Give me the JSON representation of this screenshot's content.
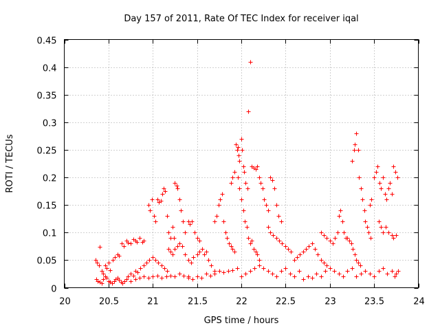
{
  "chart_data": {
    "type": "scatter",
    "title": "Day 157 of 2011, Rate Of TEC Index for receiver iqal",
    "xlabel": "GPS time / hours",
    "ylabel": "ROTI / TECUs",
    "xlim": [
      20,
      24
    ],
    "ylim": [
      0,
      0.45
    ],
    "xticks": [
      20,
      20.5,
      21,
      21.5,
      22,
      22.5,
      23,
      23.5,
      24
    ],
    "xtick_labels": [
      "20",
      "20.5",
      "21",
      "21.5",
      "22",
      "22.5",
      "23",
      "23.5",
      "24"
    ],
    "yticks": [
      0,
      0.05,
      0.1,
      0.15,
      0.2,
      0.25,
      0.3,
      0.35,
      0.4,
      0.45
    ],
    "ytick_labels": [
      "0",
      "0.05",
      "0.1",
      "0.15",
      "0.2",
      "0.25",
      "0.3",
      "0.35",
      "0.4",
      "0.45"
    ],
    "grid": true,
    "marker": "+",
    "color": "#ff0000",
    "series": [
      {
        "name": "ROTI",
        "points": [
          [
            20.35,
            0.05
          ],
          [
            20.37,
            0.045
          ],
          [
            20.39,
            0.04
          ],
          [
            20.4,
            0.074
          ],
          [
            20.42,
            0.03
          ],
          [
            20.44,
            0.025
          ],
          [
            20.36,
            0.015
          ],
          [
            20.38,
            0.012
          ],
          [
            20.4,
            0.01
          ],
          [
            20.42,
            0.008
          ],
          [
            20.44,
            0.015
          ],
          [
            20.46,
            0.02
          ],
          [
            20.48,
            0.018
          ],
          [
            20.5,
            0.012
          ],
          [
            20.52,
            0.01
          ],
          [
            20.54,
            0.008
          ],
          [
            20.56,
            0.012
          ],
          [
            20.58,
            0.015
          ],
          [
            20.6,
            0.018
          ],
          [
            20.62,
            0.014
          ],
          [
            20.64,
            0.01
          ],
          [
            20.66,
            0.008
          ],
          [
            20.68,
            0.012
          ],
          [
            20.7,
            0.016
          ],
          [
            20.46,
            0.04
          ],
          [
            20.48,
            0.035
          ],
          [
            20.5,
            0.045
          ],
          [
            20.52,
            0.032
          ],
          [
            20.55,
            0.05
          ],
          [
            20.57,
            0.055
          ],
          [
            20.6,
            0.06
          ],
          [
            20.62,
            0.058
          ],
          [
            20.65,
            0.08
          ],
          [
            20.67,
            0.075
          ],
          [
            20.7,
            0.085
          ],
          [
            20.72,
            0.082
          ],
          [
            20.75,
            0.08
          ],
          [
            20.78,
            0.088
          ],
          [
            20.8,
            0.085
          ],
          [
            20.82,
            0.083
          ],
          [
            20.85,
            0.09
          ],
          [
            20.88,
            0.083
          ],
          [
            20.9,
            0.086
          ],
          [
            20.72,
            0.02
          ],
          [
            20.75,
            0.025
          ],
          [
            20.78,
            0.022
          ],
          [
            20.8,
            0.03
          ],
          [
            20.83,
            0.028
          ],
          [
            20.86,
            0.035
          ],
          [
            20.9,
            0.04
          ],
          [
            20.93,
            0.045
          ],
          [
            20.96,
            0.05
          ],
          [
            21.0,
            0.055
          ],
          [
            21.03,
            0.05
          ],
          [
            21.06,
            0.045
          ],
          [
            21.1,
            0.04
          ],
          [
            21.13,
            0.035
          ],
          [
            21.16,
            0.03
          ],
          [
            20.75,
            0.012
          ],
          [
            20.8,
            0.015
          ],
          [
            20.85,
            0.018
          ],
          [
            20.9,
            0.02
          ],
          [
            20.95,
            0.018
          ],
          [
            21.0,
            0.02
          ],
          [
            21.05,
            0.022
          ],
          [
            21.1,
            0.018
          ],
          [
            21.15,
            0.02
          ],
          [
            21.2,
            0.022
          ],
          [
            21.25,
            0.02
          ],
          [
            21.3,
            0.025
          ],
          [
            21.35,
            0.022
          ],
          [
            21.4,
            0.02
          ],
          [
            20.95,
            0.15
          ],
          [
            20.97,
            0.14
          ],
          [
            20.99,
            0.16
          ],
          [
            21.01,
            0.13
          ],
          [
            21.03,
            0.12
          ],
          [
            21.05,
            0.16
          ],
          [
            21.07,
            0.155
          ],
          [
            21.09,
            0.158
          ],
          [
            21.11,
            0.17
          ],
          [
            21.12,
            0.18
          ],
          [
            21.14,
            0.175
          ],
          [
            21.16,
            0.13
          ],
          [
            21.18,
            0.1
          ],
          [
            21.2,
            0.09
          ],
          [
            21.22,
            0.11
          ],
          [
            21.24,
            0.09
          ],
          [
            21.25,
            0.19
          ],
          [
            21.27,
            0.185
          ],
          [
            21.28,
            0.18
          ],
          [
            21.3,
            0.16
          ],
          [
            21.32,
            0.14
          ],
          [
            21.34,
            0.12
          ],
          [
            21.36,
            0.1
          ],
          [
            21.18,
            0.07
          ],
          [
            21.2,
            0.065
          ],
          [
            21.22,
            0.06
          ],
          [
            21.25,
            0.07
          ],
          [
            21.28,
            0.075
          ],
          [
            21.3,
            0.08
          ],
          [
            21.33,
            0.075
          ],
          [
            21.36,
            0.06
          ],
          [
            21.4,
            0.05
          ],
          [
            21.43,
            0.045
          ],
          [
            21.46,
            0.055
          ],
          [
            21.5,
            0.06
          ],
          [
            21.53,
            0.065
          ],
          [
            21.4,
            0.12
          ],
          [
            21.42,
            0.115
          ],
          [
            21.44,
            0.12
          ],
          [
            21.47,
            0.1
          ],
          [
            21.5,
            0.09
          ],
          [
            21.53,
            0.085
          ],
          [
            21.56,
            0.07
          ],
          [
            21.58,
            0.06
          ],
          [
            21.6,
            0.065
          ],
          [
            21.63,
            0.05
          ],
          [
            21.66,
            0.04
          ],
          [
            21.7,
            0.03
          ],
          [
            21.4,
            0.018
          ],
          [
            21.45,
            0.015
          ],
          [
            21.5,
            0.02
          ],
          [
            21.55,
            0.018
          ],
          [
            21.6,
            0.025
          ],
          [
            21.65,
            0.022
          ],
          [
            21.7,
            0.025
          ],
          [
            21.75,
            0.03
          ],
          [
            21.8,
            0.028
          ],
          [
            21.85,
            0.03
          ],
          [
            21.9,
            0.032
          ],
          [
            21.95,
            0.035
          ],
          [
            21.7,
            0.12
          ],
          [
            21.72,
            0.13
          ],
          [
            21.74,
            0.15
          ],
          [
            21.76,
            0.16
          ],
          [
            21.78,
            0.17
          ],
          [
            21.8,
            0.12
          ],
          [
            21.82,
            0.1
          ],
          [
            21.84,
            0.09
          ],
          [
            21.86,
            0.08
          ],
          [
            21.88,
            0.075
          ],
          [
            21.9,
            0.07
          ],
          [
            21.92,
            0.065
          ],
          [
            21.88,
            0.19
          ],
          [
            21.9,
            0.2
          ],
          [
            21.92,
            0.21
          ],
          [
            21.94,
            0.26
          ],
          [
            21.95,
            0.25
          ],
          [
            21.96,
            0.255
          ],
          [
            21.97,
            0.24
          ],
          [
            21.98,
            0.23
          ],
          [
            22.0,
            0.27
          ],
          [
            22.01,
            0.25
          ],
          [
            22.02,
            0.22
          ],
          [
            22.03,
            0.21
          ],
          [
            22.05,
            0.19
          ],
          [
            22.07,
            0.18
          ],
          [
            22.08,
            0.32
          ],
          [
            22.1,
            0.41
          ],
          [
            21.96,
            0.2
          ],
          [
            21.98,
            0.18
          ],
          [
            22.0,
            0.16
          ],
          [
            22.02,
            0.14
          ],
          [
            22.04,
            0.12
          ],
          [
            22.06,
            0.11
          ],
          [
            22.08,
            0.09
          ],
          [
            22.1,
            0.08
          ],
          [
            22.12,
            0.085
          ],
          [
            22.14,
            0.07
          ],
          [
            22.16,
            0.065
          ],
          [
            22.18,
            0.06
          ],
          [
            22.2,
            0.05
          ],
          [
            22.12,
            0.22
          ],
          [
            22.14,
            0.218
          ],
          [
            22.16,
            0.215
          ],
          [
            22.18,
            0.22
          ],
          [
            22.2,
            0.2
          ],
          [
            22.22,
            0.19
          ],
          [
            22.24,
            0.18
          ],
          [
            22.26,
            0.16
          ],
          [
            22.28,
            0.15
          ],
          [
            22.3,
            0.14
          ],
          [
            22.33,
            0.2
          ],
          [
            22.35,
            0.195
          ],
          [
            22.37,
            0.18
          ],
          [
            22.4,
            0.15
          ],
          [
            22.42,
            0.13
          ],
          [
            22.45,
            0.12
          ],
          [
            22.3,
            0.11
          ],
          [
            22.33,
            0.1
          ],
          [
            22.36,
            0.095
          ],
          [
            22.4,
            0.09
          ],
          [
            22.43,
            0.085
          ],
          [
            22.46,
            0.08
          ],
          [
            22.5,
            0.075
          ],
          [
            22.53,
            0.07
          ],
          [
            22.56,
            0.065
          ],
          [
            22.0,
            0.02
          ],
          [
            22.05,
            0.025
          ],
          [
            22.1,
            0.03
          ],
          [
            22.15,
            0.035
          ],
          [
            22.2,
            0.04
          ],
          [
            22.25,
            0.035
          ],
          [
            22.3,
            0.03
          ],
          [
            22.35,
            0.025
          ],
          [
            22.4,
            0.02
          ],
          [
            22.45,
            0.03
          ],
          [
            22.5,
            0.035
          ],
          [
            22.55,
            0.025
          ],
          [
            22.6,
            0.02
          ],
          [
            22.65,
            0.03
          ],
          [
            22.6,
            0.05
          ],
          [
            22.63,
            0.055
          ],
          [
            22.66,
            0.06
          ],
          [
            22.7,
            0.065
          ],
          [
            22.73,
            0.07
          ],
          [
            22.76,
            0.075
          ],
          [
            22.8,
            0.08
          ],
          [
            22.83,
            0.07
          ],
          [
            22.86,
            0.06
          ],
          [
            22.9,
            0.05
          ],
          [
            22.93,
            0.045
          ],
          [
            22.96,
            0.04
          ],
          [
            22.7,
            0.015
          ],
          [
            22.75,
            0.02
          ],
          [
            22.8,
            0.018
          ],
          [
            22.85,
            0.025
          ],
          [
            22.9,
            0.02
          ],
          [
            22.95,
            0.03
          ],
          [
            23.0,
            0.035
          ],
          [
            23.05,
            0.03
          ],
          [
            23.1,
            0.025
          ],
          [
            23.15,
            0.02
          ],
          [
            23.2,
            0.03
          ],
          [
            23.25,
            0.035
          ],
          [
            22.9,
            0.1
          ],
          [
            22.93,
            0.095
          ],
          [
            22.96,
            0.09
          ],
          [
            23.0,
            0.085
          ],
          [
            23.03,
            0.08
          ],
          [
            23.06,
            0.09
          ],
          [
            23.09,
            0.1
          ],
          [
            23.1,
            0.13
          ],
          [
            23.12,
            0.14
          ],
          [
            23.14,
            0.12
          ],
          [
            23.16,
            0.1
          ],
          [
            23.18,
            0.09
          ],
          [
            23.25,
            0.23
          ],
          [
            23.27,
            0.25
          ],
          [
            23.28,
            0.26
          ],
          [
            23.3,
            0.28
          ],
          [
            23.32,
            0.25
          ],
          [
            23.33,
            0.2
          ],
          [
            23.35,
            0.18
          ],
          [
            23.37,
            0.16
          ],
          [
            23.39,
            0.14
          ],
          [
            23.4,
            0.12
          ],
          [
            23.42,
            0.11
          ],
          [
            23.44,
            0.1
          ],
          [
            23.46,
            0.09
          ],
          [
            23.2,
            0.09
          ],
          [
            23.22,
            0.085
          ],
          [
            23.24,
            0.08
          ],
          [
            23.26,
            0.07
          ],
          [
            23.28,
            0.06
          ],
          [
            23.3,
            0.05
          ],
          [
            23.32,
            0.045
          ],
          [
            23.34,
            0.04
          ],
          [
            23.45,
            0.15
          ],
          [
            23.47,
            0.16
          ],
          [
            23.5,
            0.2
          ],
          [
            23.52,
            0.21
          ],
          [
            23.54,
            0.22
          ],
          [
            23.56,
            0.19
          ],
          [
            23.58,
            0.18
          ],
          [
            23.6,
            0.2
          ],
          [
            23.62,
            0.17
          ],
          [
            23.64,
            0.16
          ],
          [
            23.66,
            0.18
          ],
          [
            23.68,
            0.19
          ],
          [
            23.7,
            0.17
          ],
          [
            23.72,
            0.22
          ],
          [
            23.74,
            0.21
          ],
          [
            23.76,
            0.2
          ],
          [
            23.55,
            0.12
          ],
          [
            23.58,
            0.11
          ],
          [
            23.6,
            0.1
          ],
          [
            23.63,
            0.11
          ],
          [
            23.66,
            0.1
          ],
          [
            23.7,
            0.095
          ],
          [
            23.72,
            0.09
          ],
          [
            23.75,
            0.095
          ],
          [
            23.3,
            0.02
          ],
          [
            23.35,
            0.025
          ],
          [
            23.4,
            0.03
          ],
          [
            23.45,
            0.025
          ],
          [
            23.5,
            0.02
          ],
          [
            23.55,
            0.03
          ],
          [
            23.6,
            0.035
          ],
          [
            23.65,
            0.025
          ],
          [
            23.7,
            0.03
          ],
          [
            23.73,
            0.02
          ],
          [
            23.75,
            0.025
          ],
          [
            23.77,
            0.03
          ]
        ]
      }
    ]
  }
}
